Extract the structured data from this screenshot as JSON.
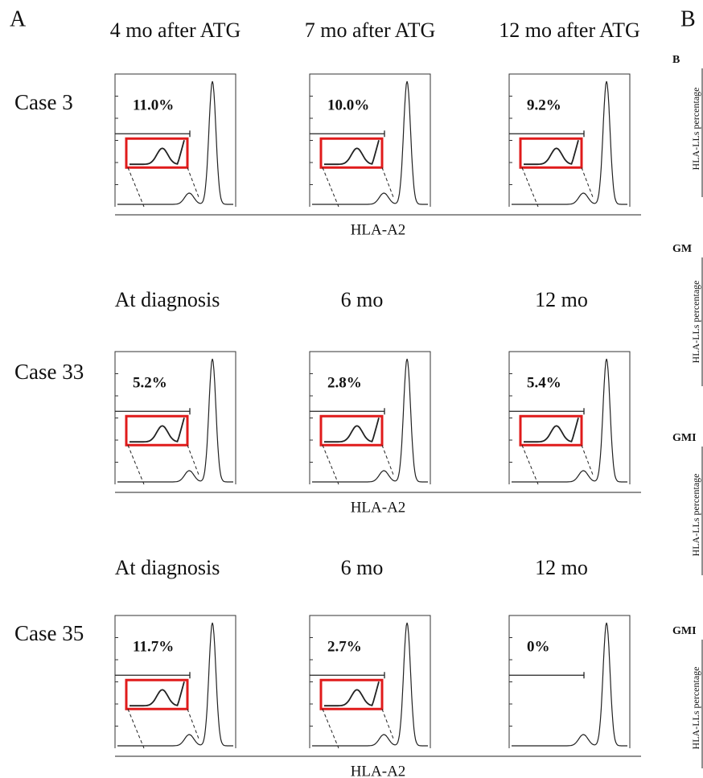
{
  "panel_labels": [
    "A",
    "B"
  ],
  "rows": [
    {
      "case": "Case 3",
      "headers": [
        "4 mo after ATG",
        "7 mo after ATG",
        "12 mo after ATG"
      ],
      "percentages": [
        "11.0%",
        "10.0%",
        "9.2%"
      ],
      "x_label": "HLA-A2"
    },
    {
      "case": "Case 33",
      "headers": [
        "At diagnosis",
        "6 mo",
        "12 mo"
      ],
      "percentages": [
        "5.2%",
        "2.8%",
        "5.4%"
      ],
      "x_label": "HLA-A2"
    },
    {
      "case": "Case 35",
      "headers": [
        "At diagnosis",
        "6 mo",
        "12 mo"
      ],
      "percentages": [
        "11.7%",
        "2.7%",
        "0%"
      ],
      "x_label": "HLA-A2"
    }
  ],
  "side_panel": {
    "labels": [
      "B",
      "GM",
      "GMI",
      "GMI"
    ],
    "y_labels": [
      "HLA-LLs percentage",
      "HLA-LLs percentage",
      "HLA-LLs percentage",
      "HLA-LLs percentage"
    ]
  }
}
